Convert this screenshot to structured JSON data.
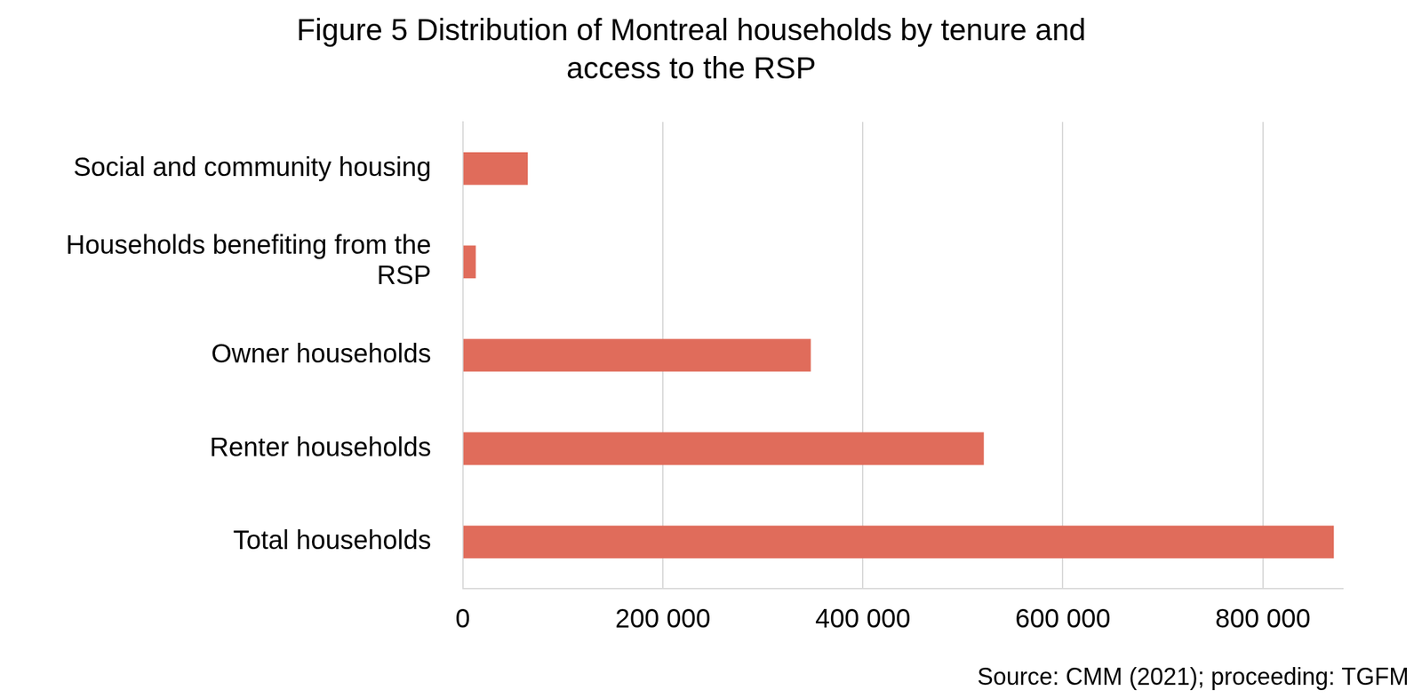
{
  "chart_data": {
    "type": "bar",
    "orientation": "horizontal",
    "title": "Figure 5 Distribution of Montreal households by tenure and access to the RSP",
    "source": "Source: CMM (2021); proceeding: TGFM",
    "categories": [
      "Social and community housing",
      "Households benefiting from the RSP",
      "Owner households",
      "Renter households",
      "Total households"
    ],
    "values": [
      65000,
      13000,
      348000,
      521000,
      871000
    ],
    "color": "#e06c5b",
    "xlim": [
      0,
      880000
    ],
    "xticks": [
      0,
      {
        "value": 200000,
        "label": "200 000"
      },
      {
        "value": 400000,
        "label": "400 000"
      },
      {
        "value": 600000,
        "label": "600 000"
      },
      {
        "value": 800000,
        "label": "800 000"
      }
    ],
    "grid": true
  }
}
